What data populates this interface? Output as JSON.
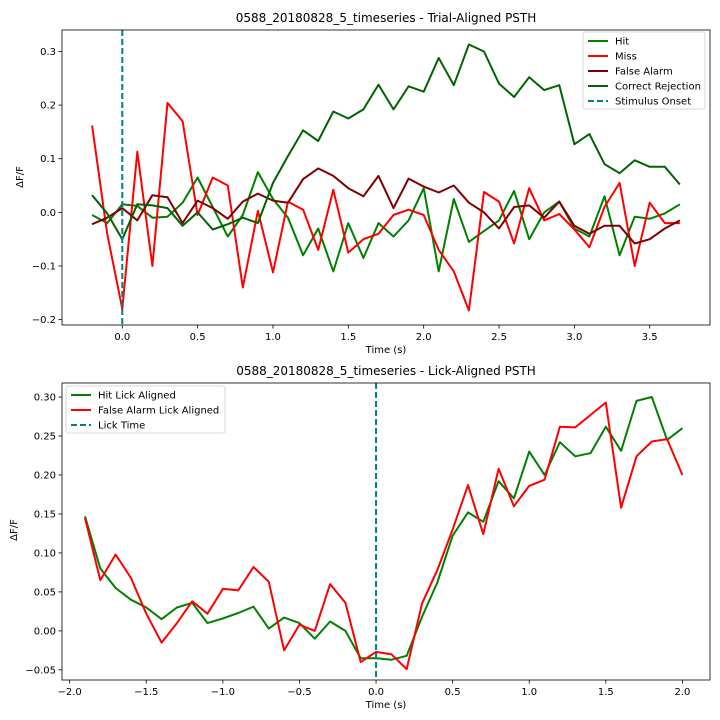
{
  "chart_data": [
    {
      "type": "line",
      "title": "0588_20180828_5_timeseries - Trial-Aligned PSTH",
      "xlabel": "Time (s)",
      "ylabel": "ΔF/F",
      "xlim": [
        -0.4,
        3.9
      ],
      "ylim": [
        -0.21,
        0.34
      ],
      "xticks": [
        0.0,
        0.5,
        1.0,
        1.5,
        2.0,
        2.5,
        3.0,
        3.5
      ],
      "xtick_labels": [
        "0.0",
        "0.5",
        "1.0",
        "1.5",
        "2.0",
        "2.5",
        "3.0",
        "3.5"
      ],
      "yticks": [
        -0.2,
        -0.1,
        0.0,
        0.1,
        0.2,
        0.3
      ],
      "ytick_labels": [
        "−0.2",
        "−0.1",
        "0.0",
        "0.1",
        "0.2",
        "0.3"
      ],
      "legend_position": "upper-right",
      "x": [
        -0.2,
        -0.1,
        0.0,
        0.1,
        0.2,
        0.3,
        0.4,
        0.5,
        0.6,
        0.7,
        0.8,
        0.9,
        1.0,
        1.1,
        1.2,
        1.3,
        1.4,
        1.5,
        1.6,
        1.7,
        1.8,
        1.9,
        2.0,
        2.1,
        2.2,
        2.3,
        2.4,
        2.5,
        2.6,
        2.7,
        2.8,
        2.9,
        3.0,
        3.1,
        3.2,
        3.3,
        3.4,
        3.5,
        3.6,
        3.7
      ],
      "series": [
        {
          "name": "Hit",
          "color": "#008000",
          "style": "solid",
          "values": [
            -0.005,
            -0.02,
            0.015,
            0.012,
            -0.01,
            -0.008,
            0.018,
            0.065,
            0.01,
            -0.045,
            -0.005,
            0.075,
            0.025,
            -0.01,
            -0.08,
            -0.03,
            -0.11,
            -0.02,
            -0.085,
            -0.02,
            -0.045,
            -0.015,
            0.045,
            -0.11,
            0.025,
            -0.055,
            -0.035,
            -0.015,
            0.04,
            -0.05,
            0.0,
            0.02,
            -0.03,
            -0.045,
            0.03,
            -0.08,
            -0.008,
            -0.012,
            -0.002,
            0.015
          ]
        },
        {
          "name": "Miss",
          "color": "#ff0000",
          "style": "solid",
          "values": [
            0.162,
            -0.04,
            -0.18,
            0.113,
            -0.1,
            0.204,
            0.17,
            -0.005,
            0.065,
            0.05,
            -0.14,
            0.003,
            -0.112,
            0.02,
            0.005,
            -0.07,
            0.042,
            -0.075,
            -0.05,
            -0.04,
            -0.005,
            0.005,
            -0.005,
            -0.07,
            -0.11,
            -0.183,
            0.038,
            0.02,
            -0.058,
            0.045,
            -0.015,
            -0.003,
            -0.032,
            -0.065,
            0.01,
            0.055,
            -0.1,
            0.018,
            -0.02,
            -0.02
          ]
        },
        {
          "name": "False Alarm",
          "color": "#800000",
          "style": "solid",
          "values": [
            -0.022,
            -0.01,
            0.008,
            -0.015,
            0.032,
            0.028,
            -0.02,
            0.022,
            0.008,
            -0.012,
            0.02,
            0.035,
            0.022,
            0.018,
            0.062,
            0.082,
            0.068,
            0.045,
            0.03,
            0.068,
            0.008,
            0.063,
            0.048,
            0.037,
            0.05,
            0.018,
            0.0,
            -0.03,
            0.01,
            0.013,
            -0.01,
            0.02,
            -0.025,
            -0.04,
            -0.025,
            -0.025,
            -0.058,
            -0.05,
            -0.03,
            -0.015
          ]
        },
        {
          "name": "Correct Rejection",
          "color": "#006400",
          "style": "solid",
          "values": [
            0.032,
            -0.002,
            -0.05,
            0.015,
            0.013,
            0.008,
            -0.025,
            0.0,
            -0.032,
            -0.022,
            -0.01,
            -0.02,
            0.055,
            0.105,
            0.153,
            0.133,
            0.188,
            0.175,
            0.192,
            0.238,
            0.192,
            0.235,
            0.225,
            0.288,
            0.237,
            0.313,
            0.3,
            0.24,
            0.215,
            0.252,
            0.228,
            0.237,
            0.127,
            0.146,
            0.09,
            0.073,
            0.097,
            0.085,
            0.085,
            0.052
          ]
        }
      ],
      "vline": {
        "name": "Stimulus Onset",
        "x": 0.0,
        "color": "#008080",
        "style": "dashed"
      }
    },
    {
      "type": "line",
      "title": "0588_20180828_5_timeseries - Lick-Aligned PSTH",
      "xlabel": "Time (s)",
      "ylabel": "ΔF/F",
      "xlim": [
        -2.05,
        2.18
      ],
      "ylim": [
        -0.063,
        0.318
      ],
      "xticks": [
        -2.0,
        -1.5,
        -1.0,
        -0.5,
        0.0,
        0.5,
        1.0,
        1.5,
        2.0
      ],
      "xtick_labels": [
        "−2.0",
        "−1.5",
        "−1.0",
        "−0.5",
        "0.0",
        "0.5",
        "1.0",
        "1.5",
        "2.0"
      ],
      "yticks": [
        -0.05,
        0.0,
        0.05,
        0.1,
        0.15,
        0.2,
        0.25,
        0.3
      ],
      "ytick_labels": [
        "−0.05",
        "0.00",
        "0.05",
        "0.10",
        "0.15",
        "0.20",
        "0.25",
        "0.30"
      ],
      "legend_position": "upper-left",
      "x": [
        -1.9,
        -1.8,
        -1.7,
        -1.6,
        -1.5,
        -1.4,
        -1.3,
        -1.2,
        -1.1,
        -1.0,
        -0.9,
        -0.8,
        -0.7,
        -0.6,
        -0.5,
        -0.4,
        -0.3,
        -0.2,
        -0.1,
        0.0,
        0.1,
        0.2,
        0.3,
        0.4,
        0.5,
        0.6,
        0.7,
        0.8,
        0.9,
        1.0,
        1.1,
        1.2,
        1.3,
        1.4,
        1.5,
        1.6,
        1.7,
        1.8,
        1.9,
        2.0
      ],
      "series": [
        {
          "name": "Hit Lick Aligned",
          "color": "#008000",
          "style": "solid",
          "values": [
            0.147,
            0.08,
            0.055,
            0.04,
            0.03,
            0.015,
            0.03,
            0.036,
            0.01,
            0.016,
            0.023,
            0.031,
            0.003,
            0.017,
            0.01,
            -0.01,
            0.012,
            0.0,
            -0.035,
            -0.035,
            -0.037,
            -0.032,
            0.018,
            0.062,
            0.122,
            0.152,
            0.14,
            0.192,
            0.17,
            0.23,
            0.2,
            0.242,
            0.224,
            0.228,
            0.262,
            0.231,
            0.295,
            0.3,
            0.245,
            0.26
          ]
        },
        {
          "name": "False Alarm Lick Aligned",
          "color": "#ff0000",
          "style": "solid",
          "values": [
            0.145,
            0.065,
            0.098,
            0.068,
            0.022,
            -0.015,
            0.01,
            0.038,
            0.022,
            0.054,
            0.052,
            0.082,
            0.063,
            -0.025,
            0.008,
            0.0,
            0.06,
            0.036,
            -0.04,
            -0.027,
            -0.03,
            -0.049,
            0.035,
            0.078,
            0.13,
            0.187,
            0.124,
            0.208,
            0.16,
            0.186,
            0.194,
            0.262,
            0.261,
            0.277,
            0.293,
            0.158,
            0.224,
            0.243,
            0.246,
            0.2
          ]
        }
      ],
      "vline": {
        "name": "Lick Time",
        "x": 0.0,
        "color": "#008080",
        "style": "dashed"
      }
    }
  ]
}
